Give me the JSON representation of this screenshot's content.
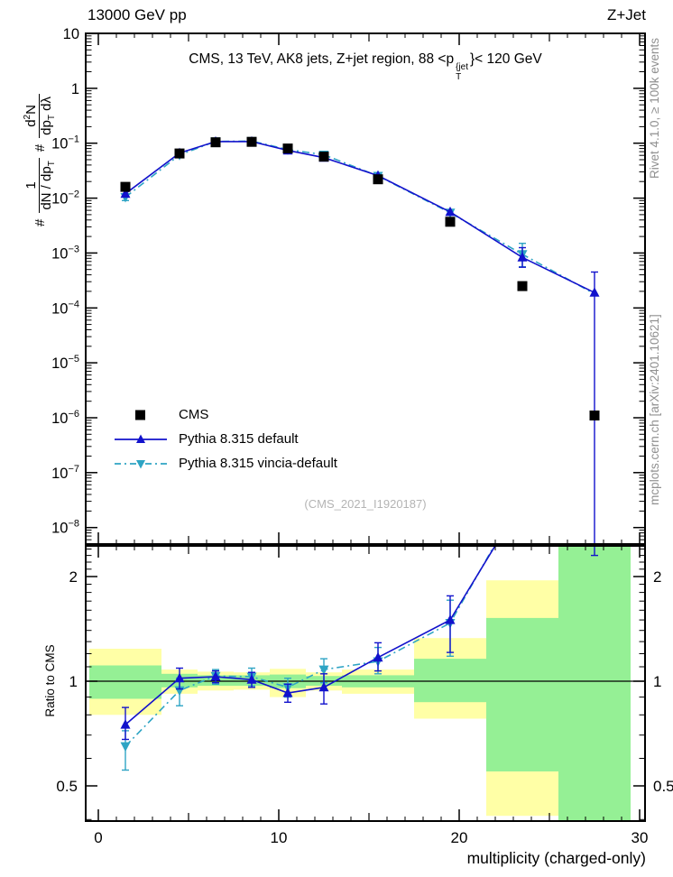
{
  "header": {
    "left": "13000 GeV pp",
    "right": "Z+Jet"
  },
  "panel_title": {
    "pre": "CMS, 13 TeV, AK8 jets, Z+jet region, 88 <p",
    "sup": "{jet",
    "sub": "T",
    "post": "}< 120 GeV"
  },
  "y_axis_label": {
    "hash1": "#",
    "num1": "1",
    "den1": "dN / dp",
    "den1_sub": "T",
    "hash2": "#",
    "num2a": "d",
    "num2_sup": "2",
    "num2b": "N",
    "den2a": "dp",
    "den2_sub": "T",
    "den2b": " dλ"
  },
  "ratio_ylabel": "Ratio to CMS",
  "xlabel": "multiplicity (charged-only)",
  "watermark": "(CMS_2021_I1920187)",
  "side_notes": {
    "top": "Rivet 4.1.0, ≥ 100k events",
    "bottom": "mcplots.cern.ch [arXiv:2401.10621]"
  },
  "legend": [
    {
      "label": "CMS"
    },
    {
      "label": "Pythia 8.315 default"
    },
    {
      "label": "Pythia 8.315 vincia-default"
    }
  ],
  "colors": {
    "cms": "#000000",
    "default": "#1212cc",
    "vincia": "#2ea4c4",
    "band_green": "#95f095",
    "band_yellow": "#ffffa6",
    "frame": "#000000",
    "gray": "#909090"
  },
  "chart_data": {
    "type": "line",
    "title": "CMS, 13 TeV, AK8 jets, Z+jet region, 88 < pT{jet} < 120 GeV",
    "xlabel": "multiplicity (charged-only)",
    "xlim": [
      -0.7,
      30.3
    ],
    "xticks_labeled": [
      0,
      10,
      20,
      30
    ],
    "xticks_medium": [
      5,
      15,
      25
    ],
    "main_panel": {
      "yscale": "log",
      "ylim": [
        5e-09,
        10
      ],
      "ytick_exponents": [
        1,
        0,
        -1,
        -2,
        -3,
        -4,
        -5,
        -6,
        -7,
        -8
      ],
      "series": [
        {
          "name": "CMS",
          "color_key": "cms",
          "marker": "square",
          "line": "none",
          "points": [
            [
              1.5,
              0.016
            ],
            [
              4.5,
              0.065
            ],
            [
              6.5,
              0.104
            ],
            [
              8.5,
              0.106
            ],
            [
              10.5,
              0.08
            ],
            [
              12.5,
              0.057
            ],
            [
              15.5,
              0.022
            ],
            [
              19.5,
              0.0037
            ],
            [
              23.5,
              0.00025
            ],
            [
              27.5,
              1.1e-06
            ]
          ]
        },
        {
          "name": "Pythia 8.315 default",
          "color_key": "default",
          "marker": "triangle-up",
          "line": "solid",
          "points": [
            [
              1.5,
              0.012
            ],
            [
              4.5,
              0.0663
            ],
            [
              6.5,
              0.1071
            ],
            [
              8.5,
              0.1071
            ],
            [
              10.5,
              0.074
            ],
            [
              12.5,
              0.0547
            ],
            [
              15.5,
              0.0257
            ],
            [
              19.5,
              0.0056
            ],
            [
              23.5,
              0.00083,
              0.00055,
              0.00125
            ],
            [
              27.5,
              0.00019,
              1e-09,
              0.00045
            ]
          ]
        },
        {
          "name": "Pythia 8.315 vincia-default",
          "color_key": "vincia",
          "marker": "triangle-down",
          "line": "dashdot",
          "points": [
            [
              1.5,
              0.0104,
              0.009,
              0.0118
            ],
            [
              4.5,
              0.0611
            ],
            [
              6.5,
              0.1077
            ],
            [
              8.5,
              0.1092
            ],
            [
              10.5,
              0.0768
            ],
            [
              12.5,
              0.0616
            ],
            [
              15.5,
              0.0253
            ],
            [
              19.5,
              0.0054
            ],
            [
              23.5,
              0.00095,
              0.00056,
              0.0015
            ],
            [
              27.5,
              0.00018,
              null,
              null,
              1
            ]
          ]
        }
      ]
    },
    "ratio_panel": {
      "yscale": "log",
      "ylim": [
        0.396,
        2.45
      ],
      "yticks_labeled": [
        2,
        1,
        0.5
      ],
      "ytick_labels": [
        "2",
        "1",
        "0.5"
      ],
      "yticks_minor": [
        0.4,
        0.6,
        0.7,
        0.8,
        0.9,
        1.1,
        1.2,
        1.3,
        1.4,
        1.5,
        1.6,
        1.7,
        1.8,
        1.9,
        2.1,
        2.2,
        2.3,
        2.4
      ],
      "baseline": 1,
      "bands": [
        {
          "x": [
            -0.5,
            3.5
          ],
          "green": [
            0.89,
            1.11
          ],
          "yellow": [
            0.8,
            1.24
          ]
        },
        {
          "x": [
            3.5,
            5.5
          ],
          "green": [
            0.96,
            1.05
          ],
          "yellow": [
            0.92,
            1.08
          ]
        },
        {
          "x": [
            5.5,
            7.5
          ],
          "green": [
            0.97,
            1.04
          ],
          "yellow": [
            0.94,
            1.065
          ]
        },
        {
          "x": [
            7.5,
            9.5
          ],
          "green": [
            0.97,
            1.04
          ],
          "yellow": [
            0.945,
            1.06
          ]
        },
        {
          "x": [
            9.5,
            11.5
          ],
          "green": [
            0.955,
            1.045
          ],
          "yellow": [
            0.9,
            1.085
          ]
        },
        {
          "x": [
            11.5,
            13.5
          ],
          "green": [
            0.97,
            1.035
          ],
          "yellow": [
            0.94,
            1.06
          ]
        },
        {
          "x": [
            13.5,
            17.5
          ],
          "green": [
            0.96,
            1.04
          ],
          "yellow": [
            0.92,
            1.08
          ]
        },
        {
          "x": [
            17.5,
            21.5
          ],
          "green": [
            0.87,
            1.16
          ],
          "yellow": [
            0.78,
            1.33
          ]
        },
        {
          "x": [
            21.5,
            25.5
          ],
          "green": [
            0.55,
            1.52
          ],
          "yellow": [
            0.41,
            1.95
          ]
        },
        {
          "x": [
            25.5,
            29.5
          ],
          "green": [
            0.3,
            2.6
          ],
          "yellow": null
        }
      ],
      "series": [
        {
          "name": "Pythia 8.315 default",
          "color_key": "default",
          "marker": "triangle-up",
          "line": "solid",
          "points": [
            [
              1.5,
              0.75,
              0.68,
              0.84
            ],
            [
              4.5,
              1.02,
              0.95,
              1.09
            ],
            [
              6.5,
              1.03,
              0.99,
              1.07
            ],
            [
              8.5,
              1.01,
              0.96,
              1.06
            ],
            [
              10.5,
              0.925,
              0.87,
              0.98
            ],
            [
              12.5,
              0.96,
              0.86,
              1.05
            ],
            [
              15.5,
              1.17,
              1.07,
              1.29
            ],
            [
              19.5,
              1.5,
              1.21,
              1.76
            ],
            [
              23.5,
              3.3
            ],
            [
              27.5,
              30,
              2.3,
              60
            ]
          ]
        },
        {
          "name": "Pythia 8.315 vincia-default",
          "color_key": "vincia",
          "marker": "triangle-down",
          "line": "dashdot",
          "points": [
            [
              1.5,
              0.65,
              0.555,
              0.72
            ],
            [
              4.5,
              0.94,
              0.85,
              1.02
            ],
            [
              6.5,
              1.035,
              0.98,
              1.08
            ],
            [
              8.5,
              1.03,
              0.97,
              1.09
            ],
            [
              10.5,
              0.96,
              0.9,
              1.02
            ],
            [
              12.5,
              1.08,
              0.99,
              1.16
            ],
            [
              15.5,
              1.14,
              1.05,
              1.25
            ],
            [
              19.5,
              1.47,
              1.18,
              1.71
            ],
            [
              23.5,
              3.4
            ]
          ]
        }
      ]
    }
  }
}
